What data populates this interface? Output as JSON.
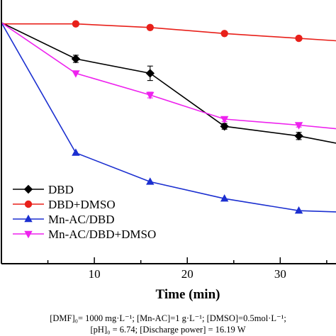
{
  "chart_data": {
    "type": "line",
    "xlabel": "Time (min)",
    "ylabel": "",
    "xlim": [
      0,
      36
    ],
    "ylim": [
      0,
      1.0
    ],
    "xticks": [
      10,
      20,
      30
    ],
    "legend_position": "bottom-left",
    "grid": false,
    "series": [
      {
        "name": "DBD",
        "color": "#000000",
        "marker": "diamond",
        "x": [
          0,
          8,
          16,
          24,
          32,
          36
        ],
        "y": [
          1.0,
          0.85,
          0.79,
          0.57,
          0.53,
          0.5
        ],
        "err": [
          0,
          0.015,
          0.03,
          0.012,
          0.015,
          0
        ]
      },
      {
        "name": "DBD+DMSO",
        "color": "#e8201a",
        "marker": "circle",
        "x": [
          0,
          8,
          16,
          24,
          32,
          36
        ],
        "y": [
          0.995,
          0.995,
          0.98,
          0.955,
          0.935,
          0.925
        ],
        "err": [
          0,
          0,
          0,
          0,
          0,
          0
        ]
      },
      {
        "name": "Mn-AC/DBD",
        "color": "#1b2fd0",
        "marker": "triangle-up",
        "x": [
          0,
          8,
          16,
          24,
          32,
          36
        ],
        "y": [
          1.0,
          0.46,
          0.34,
          0.27,
          0.22,
          0.215
        ],
        "err": [
          0,
          0,
          0,
          0,
          0,
          0
        ]
      },
      {
        "name": "Mn-AC/DBD+DMSO",
        "color": "#ee22ee",
        "marker": "triangle-down",
        "x": [
          0,
          8,
          16,
          24,
          32,
          36
        ],
        "y": [
          1.0,
          0.79,
          0.7,
          0.6,
          0.575,
          0.56
        ],
        "err": [
          0,
          0,
          0.012,
          0.01,
          0.008,
          0
        ]
      }
    ]
  },
  "notes": {
    "line1": "[DMF]₀= 1000 mg·L⁻¹;  [Mn-AC]=1 g·L⁻¹;  [DMSO]=0.5mol·L⁻¹;",
    "line2": "[pH]₀ = 6.74;  [Discharge power] = 16.19 W"
  }
}
